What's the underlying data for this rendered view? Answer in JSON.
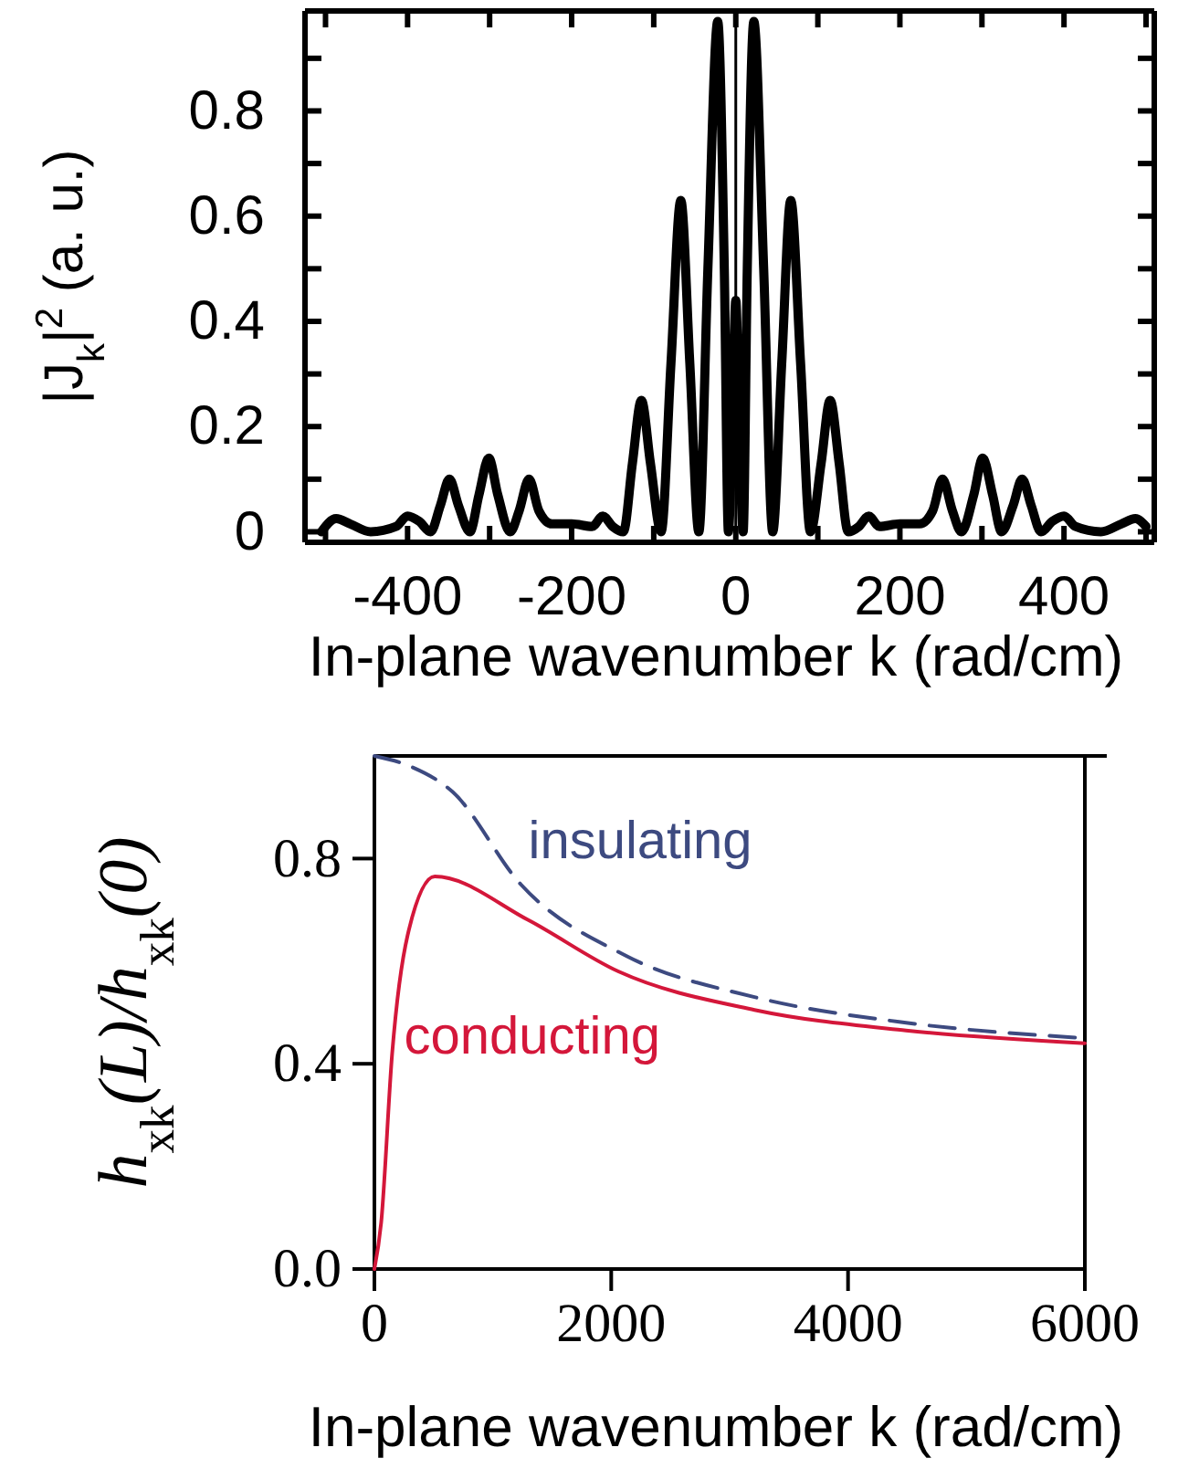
{
  "chart_data": [
    {
      "type": "line",
      "xlabel": "In-plane wavenumber k (rad/cm)",
      "ylabel": "|J$_{k}$|$^{2}$ (a. u.)",
      "xlim": [
        -525,
        510
      ],
      "ylim": [
        -0.02,
        0.99
      ],
      "xticks": [
        {
          "value": -500,
          "label": null
        },
        -400,
        {
          "value": -300,
          "label": null
        },
        -200,
        {
          "value": -100,
          "label": null
        },
        0,
        {
          "value": 100,
          "label": null
        },
        200,
        {
          "value": 300,
          "label": null
        },
        400,
        {
          "value": 500,
          "label": null
        }
      ],
      "yticks": [
        0,
        {
          "value": 0.1,
          "label": null
        },
        0.2,
        {
          "value": 0.3,
          "label": null
        },
        0.4,
        {
          "value": 0.5,
          "label": null
        },
        0.6,
        {
          "value": 0.7,
          "label": null
        },
        0.8,
        {
          "value": 0.9,
          "label": null
        }
      ],
      "ref_lines": [
        {
          "axis": "x",
          "value": 0,
          "color": "#000000"
        }
      ],
      "grid": false,
      "legend": false,
      "marker": "none",
      "line_style": "solid",
      "series": [
        {
          "color": "#000000",
          "x": [
            -505,
            -487,
            -470,
            -445,
            -414,
            -400,
            -386,
            -372,
            -360,
            -349,
            -338,
            -324,
            -313,
            -301,
            -290,
            -275,
            -264,
            -252,
            -240,
            -224,
            -200,
            -175,
            -162,
            -150,
            -137,
            -126,
            -115,
            -104,
            -91,
            -79,
            -67,
            -56,
            -45,
            -34,
            -22,
            -14,
            -9,
            -4,
            0,
            4,
            9,
            14,
            22,
            34,
            45,
            56,
            67,
            79,
            91,
            104,
            115,
            126,
            137,
            150,
            162,
            175,
            200,
            224,
            240,
            252,
            264,
            275,
            290,
            301,
            313,
            324,
            338,
            349,
            360,
            372,
            386,
            400,
            414,
            445,
            470,
            487,
            500
          ],
          "values": [
            0,
            0.025,
            0.015,
            0,
            0.01,
            0.03,
            0.02,
            0,
            0.05,
            0.1,
            0.05,
            0,
            0.07,
            0.14,
            0.07,
            0,
            0.04,
            0.1,
            0.04,
            0.015,
            0.015,
            0.01,
            0.03,
            0.01,
            0,
            0.13,
            0.25,
            0.13,
            0,
            0.32,
            0.63,
            0.32,
            0,
            0.5,
            0.97,
            0.5,
            0,
            0.22,
            0.44,
            0.22,
            0,
            0.5,
            0.97,
            0.5,
            0,
            0.32,
            0.63,
            0.32,
            0,
            0.13,
            0.25,
            0.13,
            0,
            0.01,
            0.03,
            0.01,
            0.015,
            0.015,
            0.04,
            0.1,
            0.04,
            0,
            0.07,
            0.14,
            0.07,
            0,
            0.05,
            0.1,
            0.05,
            0,
            0.02,
            0.03,
            0.01,
            0,
            0.015,
            0.025,
            0.01
          ]
        }
      ]
    },
    {
      "type": "line",
      "xlabel": "In-plane wavenumber k (rad/cm)",
      "ylabel": "h$_{xk}$(L)/h$_{xk}$(0)",
      "xlim": [
        0,
        6000
      ],
      "ylim": [
        0,
        1
      ],
      "xticks": [
        0,
        2000,
        4000,
        6000
      ],
      "yticks": [
        {
          "value": 0,
          "label": "0.0"
        },
        {
          "value": 0.4,
          "label": "0.4"
        },
        {
          "value": 0.8,
          "label": "0.8"
        }
      ],
      "grid": false,
      "legend": false,
      "marker": "none",
      "series": [
        {
          "name": "insulating",
          "color": "#3d4a80",
          "line_style": "dashed",
          "x": [
            0,
            300,
            660,
            1235,
            2130,
            3210,
            4490,
            6000
          ],
          "values": [
            1.0,
            0.98,
            0.93,
            0.75,
            0.61,
            0.53,
            0.48,
            0.45
          ]
        },
        {
          "name": "conducting",
          "color": "#d4173a",
          "line_style": "solid",
          "x": [
            0,
            57,
            150,
            280,
            510,
            1300,
            2060,
            3210,
            4490,
            6000
          ],
          "values": [
            0,
            0.09,
            0.42,
            0.65,
            0.765,
            0.68,
            0.58,
            0.505,
            0.465,
            0.44
          ]
        }
      ]
    }
  ]
}
